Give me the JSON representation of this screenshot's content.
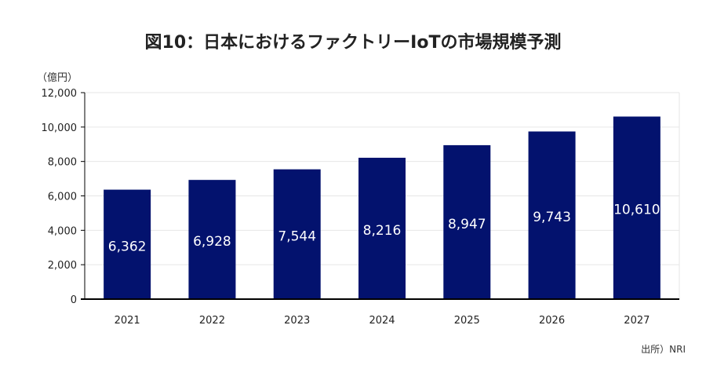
{
  "title": "図10：日本におけるファクトリーIoTの市場規模予測",
  "unit_label": "（億円）",
  "source_note": "出所）NRI",
  "colors": {
    "bar": "#03126E",
    "grid": "#E6E6E6",
    "axis": "#000000"
  },
  "chart_data": {
    "type": "bar",
    "title": "図10：日本におけるファクトリーIoTの市場規模予測",
    "xlabel": "",
    "ylabel": "（億円）",
    "categories": [
      "2021",
      "2022",
      "2023",
      "2024",
      "2025",
      "2026",
      "2027"
    ],
    "values": [
      6362,
      6928,
      7544,
      8216,
      8947,
      9743,
      10610
    ],
    "data_labels": [
      "6,362",
      "6,928",
      "7,544",
      "8,216",
      "8,947",
      "9,743",
      "10,610"
    ],
    "ylim": [
      0,
      12000
    ],
    "yticks": [
      0,
      2000,
      4000,
      6000,
      8000,
      10000,
      12000
    ],
    "ytick_labels": [
      "0",
      "2,000",
      "4,000",
      "6,000",
      "8,000",
      "10,000",
      "12,000"
    ],
    "grid": true,
    "legend": "none"
  }
}
